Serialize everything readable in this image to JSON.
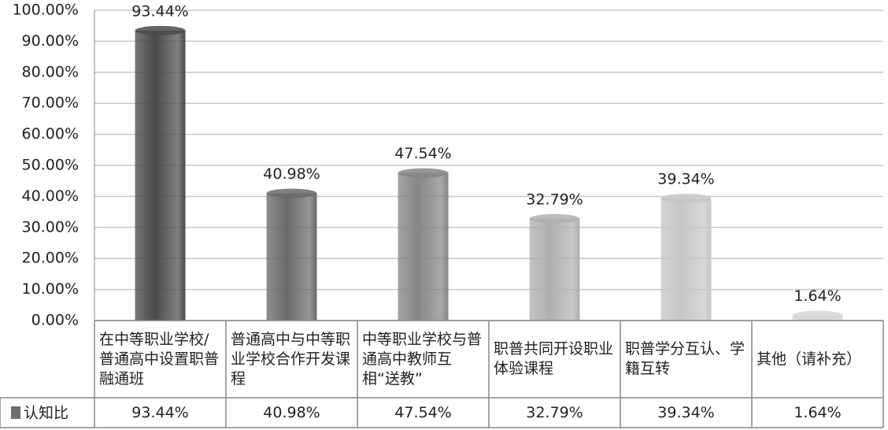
{
  "chart_data": {
    "type": "bar",
    "categories": [
      "在中等职业学校/普通高中设置职普融通班",
      "普通高中与中等职业学校合作开发课程",
      "中等职业学校与普通高中教师互相“送教”",
      "职普共同开设职业体验课程",
      "职普学分互认、学籍互转",
      "其他（请补充）"
    ],
    "series": [
      {
        "name": "认知比",
        "values": [
          93.44,
          40.98,
          47.54,
          32.79,
          39.34,
          1.64
        ],
        "value_labels": [
          "93.44%",
          "40.98%",
          "47.54%",
          "32.79%",
          "39.34%",
          "1.64%"
        ],
        "colors": [
          "#4a4a4a",
          "#6a6a6a",
          "#858585",
          "#b0b0b0",
          "#c6c6c6",
          "#d6d6d6"
        ]
      }
    ],
    "ylim": [
      0,
      100
    ],
    "yticks": [
      {
        "value": 0,
        "label": "0.00%"
      },
      {
        "value": 10,
        "label": "10.00%"
      },
      {
        "value": 20,
        "label": "20.00%"
      },
      {
        "value": 30,
        "label": "30.00%"
      },
      {
        "value": 40,
        "label": "40.00%"
      },
      {
        "value": 50,
        "label": "50.00%"
      },
      {
        "value": 60,
        "label": "60.00%"
      },
      {
        "value": 70,
        "label": "70.00%"
      },
      {
        "value": 80,
        "label": "80.00%"
      },
      {
        "value": 90,
        "label": "90.00%"
      },
      {
        "value": 100,
        "label": "100.00%"
      }
    ],
    "grid": true
  }
}
